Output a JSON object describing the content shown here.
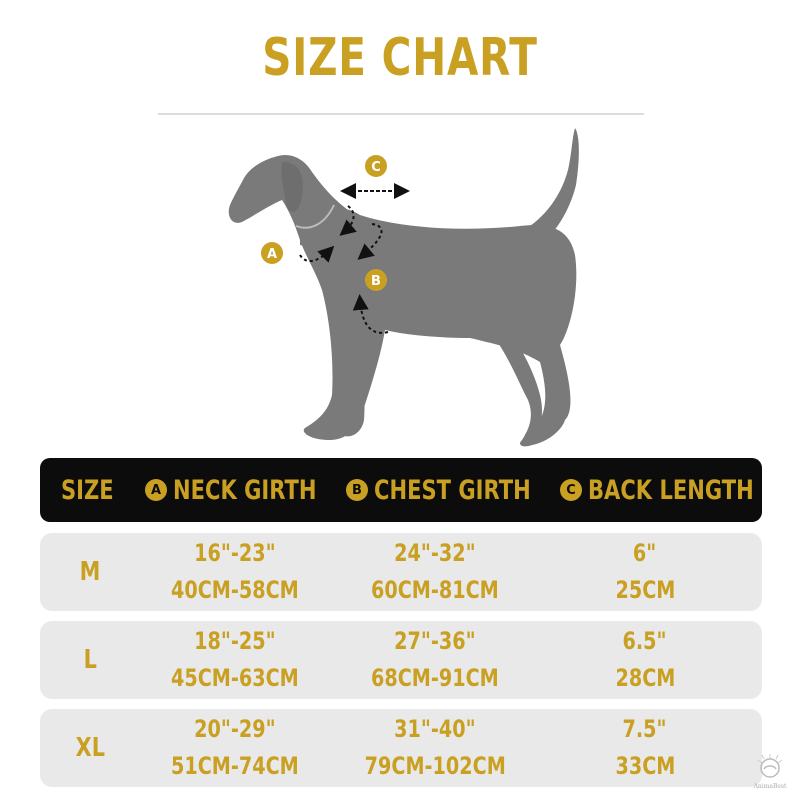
{
  "colors": {
    "accent": "#c9a022",
    "dog": "#7a7a7a",
    "header_bg": "#0c0c0c",
    "row_bg": "#e9e9e9"
  },
  "title": "SIZE CHART",
  "diagram_labels": {
    "a": "A",
    "b": "B",
    "c": "C"
  },
  "table": {
    "headers": {
      "size": "SIZE",
      "neck": "NECK GIRTH",
      "chest": "CHEST GIRTH",
      "back": "BACK LENGTH",
      "neck_badge": "A",
      "chest_badge": "B",
      "back_badge": "C"
    },
    "rows": [
      {
        "size": "M",
        "neck_in": "16\"-23\"",
        "neck_cm": "40CM-58CM",
        "chest_in": "24\"-32\"",
        "chest_cm": "60CM-81CM",
        "back_in": "6\"",
        "back_cm": "25CM"
      },
      {
        "size": "L",
        "neck_in": "18\"-25\"",
        "neck_cm": "45CM-63CM",
        "chest_in": "27\"-36\"",
        "chest_cm": "68CM-91CM",
        "back_in": "6.5\"",
        "back_cm": "28CM"
      },
      {
        "size": "XL",
        "neck_in": "20\"-29\"",
        "neck_cm": "51CM-74CM",
        "chest_in": "31\"-40\"",
        "chest_cm": "79CM-102CM",
        "back_in": "7.5\"",
        "back_cm": "33CM"
      }
    ]
  },
  "watermark": "AnimaBest"
}
